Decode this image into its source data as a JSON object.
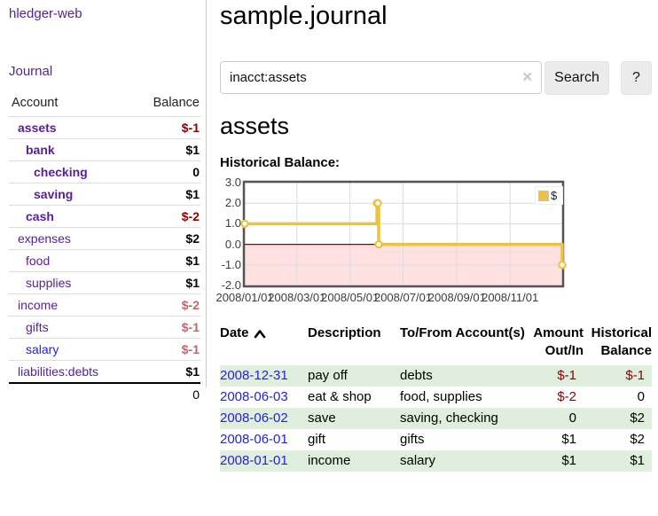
{
  "colors": {
    "link_purple": "#561e9b",
    "link_blue": "#2222dd",
    "negative_strong": "#8b0000",
    "negative_muted": "#c06868",
    "series_gold": "#edc240",
    "below_zero_fill": "rgba(255,0,0,0.12)",
    "zero_line": "#8b0000",
    "row_green": "#e0eede"
  },
  "sidebar": {
    "app_title": "hledger-web",
    "journal_link": "Journal",
    "accounts": {
      "headers": [
        "Account",
        "Balance"
      ],
      "rows": [
        {
          "label": "assets",
          "indent": 1,
          "bold": true,
          "balance": "$-1"
        },
        {
          "label": "bank",
          "indent": 2,
          "bold": true,
          "balance": "$1"
        },
        {
          "label": "checking",
          "indent": 3,
          "bold": true,
          "balance": "0"
        },
        {
          "label": "saving",
          "indent": 3,
          "bold": true,
          "balance": "$1"
        },
        {
          "label": "cash",
          "indent": 2,
          "bold": true,
          "balance": "$-2"
        },
        {
          "label": "expenses",
          "indent": 1,
          "bold": false,
          "balance": "$2"
        },
        {
          "label": "food",
          "indent": 2,
          "bold": false,
          "balance": "$1"
        },
        {
          "label": "supplies",
          "indent": 2,
          "bold": false,
          "balance": "$1"
        },
        {
          "label": "income",
          "indent": 1,
          "bold": false,
          "balance": "$-2"
        },
        {
          "label": "gifts",
          "indent": 2,
          "bold": false,
          "balance": "$-1"
        },
        {
          "label": "salary",
          "indent": 2,
          "bold": false,
          "balance": "$-1",
          "variant": "unvisited"
        },
        {
          "label": "liabilities:debts",
          "indent": 1,
          "bold": false,
          "balance": "$1"
        }
      ],
      "total": "0"
    }
  },
  "main": {
    "title": "sample.journal",
    "search": {
      "value": "inacct:assets",
      "clear_icon": "✕",
      "button_label": "Search",
      "help_label": "?"
    },
    "section_title": "assets",
    "chart_label": "Historical Balance:"
  },
  "chart_data": {
    "type": "line",
    "step": true,
    "title": "Historical Balance",
    "series": [
      {
        "name": "$",
        "points": [
          {
            "x": "2008-01-01",
            "y": 1
          },
          {
            "x": "2008-06-01",
            "y": 2
          },
          {
            "x": "2008-06-02",
            "y": 2
          },
          {
            "x": "2008-06-03",
            "y": 0
          },
          {
            "x": "2008-12-31",
            "y": -1
          }
        ]
      }
    ],
    "x_range": [
      "2008-01-01",
      "2008-12-31"
    ],
    "ylim": [
      -2,
      3
    ],
    "yticks": [
      "3.0",
      "2.0",
      "1.0",
      "0.0",
      "-1.0",
      "-2.0"
    ],
    "ytick_values": [
      3,
      2,
      1,
      0,
      -1,
      -2
    ],
    "xticks": [
      {
        "date": "2008-01-01",
        "label": "2008/01/01"
      },
      {
        "date": "2008-03-01",
        "label": "2008/03/01"
      },
      {
        "date": "2008-05-01",
        "label": "2008/05/01"
      },
      {
        "date": "2008-07-01",
        "label": "2008/07/01"
      },
      {
        "date": "2008-09-01",
        "label": "2008/09/01"
      },
      {
        "date": "2008-11-01",
        "label": "2008/11/01"
      }
    ],
    "legend": {
      "position": "top-right",
      "entries": [
        "$"
      ]
    },
    "grid": true,
    "negative_region_shaded": true
  },
  "transactions": {
    "headers": [
      "Date",
      "Description",
      "To/From Account(s)",
      "Amount Out/In",
      "Historical Balance"
    ],
    "rows": [
      {
        "date": "2008-12-31",
        "description": "pay off",
        "accounts": "debts",
        "amount": "$-1",
        "balance": "$-1"
      },
      {
        "date": "2008-06-03",
        "description": "eat & shop",
        "accounts": "food, supplies",
        "amount": "$-2",
        "balance": "0"
      },
      {
        "date": "2008-06-02",
        "description": "save",
        "accounts": "saving, checking",
        "amount": "0",
        "balance": "$2"
      },
      {
        "date": "2008-06-01",
        "description": "gift",
        "accounts": "gifts",
        "amount": "$1",
        "balance": "$2"
      },
      {
        "date": "2008-01-01",
        "description": "income",
        "accounts": "salary",
        "amount": "$1",
        "balance": "$1"
      }
    ]
  }
}
